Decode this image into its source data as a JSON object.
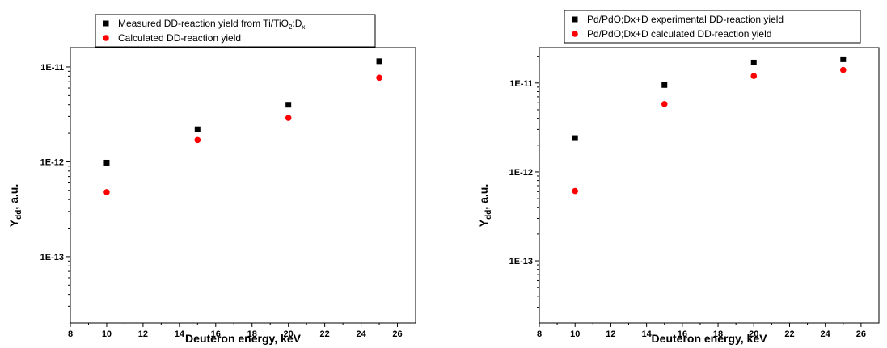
{
  "chart_data": [
    {
      "type": "scatter",
      "xlabel": "Deuteron energy, keV",
      "ylabel_main": "Y",
      "ylabel_sub": "dd",
      "ylabel_tail": ", a.u.",
      "xlim": [
        8,
        27
      ],
      "ylim": [
        2e-14,
        1.6e-11
      ],
      "yscale": "log",
      "xticks": [
        8,
        10,
        12,
        14,
        16,
        18,
        20,
        22,
        24,
        26
      ],
      "yticks": [
        1e-13,
        1e-12,
        1e-11
      ],
      "ytick_labels": [
        "1E-13",
        "1E-12",
        "1E-11"
      ],
      "legend_position": "top-center",
      "series": [
        {
          "legend_parts": [
            {
              "t": "Measured DD-reaction yield  from Ti/TiO",
              "s": "n"
            },
            {
              "t": "2",
              "s": "sub"
            },
            {
              "t": ":D",
              "s": "n"
            },
            {
              "t": "x",
              "s": "sub"
            }
          ],
          "marker": "square",
          "color": "#000000",
          "x": [
            10,
            15,
            20,
            25
          ],
          "y": [
            9.8e-13,
            2.2e-12,
            4e-12,
            1.15e-11
          ]
        },
        {
          "legend_parts": [
            {
              "t": "Calculated DD-reaction yield",
              "s": "n"
            }
          ],
          "marker": "circle",
          "color": "#ff0000",
          "x": [
            10,
            15,
            20,
            25
          ],
          "y": [
            4.8e-13,
            1.7e-12,
            2.9e-12,
            7.7e-12
          ]
        }
      ]
    },
    {
      "type": "scatter",
      "xlabel": "Deuteron energy, keV",
      "ylabel_main": "Y",
      "ylabel_sub": "dd",
      "ylabel_tail": ", a.u.",
      "xlim": [
        8,
        27
      ],
      "ylim": [
        2e-14,
        2.5e-11
      ],
      "yscale": "log",
      "xticks": [
        8,
        10,
        12,
        14,
        16,
        18,
        20,
        22,
        24,
        26
      ],
      "yticks": [
        1e-13,
        1e-12,
        1e-11
      ],
      "ytick_labels": [
        "1E-13",
        "1E-12",
        "1E-11"
      ],
      "legend_position": "top-center",
      "series": [
        {
          "legend_parts": [
            {
              "t": "Pd/PdO;Dx+D experimental DD-reaction yield",
              "s": "n"
            }
          ],
          "marker": "square",
          "color": "#000000",
          "x": [
            10,
            15,
            20,
            25
          ],
          "y": [
            2.4e-12,
            9.5e-12,
            1.7e-11,
            1.85e-11
          ]
        },
        {
          "legend_parts": [
            {
              "t": "Pd/PdO;Dx+D calculated DD-reaction yield",
              "s": "n"
            }
          ],
          "marker": "circle",
          "color": "#ff0000",
          "x": [
            10,
            15,
            20,
            25
          ],
          "y": [
            6.1e-13,
            5.8e-12,
            1.2e-11,
            1.4e-11
          ]
        }
      ]
    }
  ]
}
